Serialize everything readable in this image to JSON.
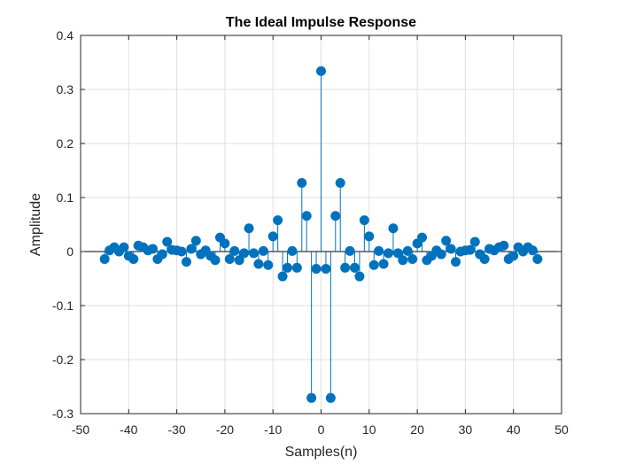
{
  "chart_data": {
    "type": "stem",
    "title": "The Ideal Impulse Response",
    "xlabel": "Samples(n)",
    "ylabel": "Amplitude",
    "xlim": [
      -50,
      50
    ],
    "ylim": [
      -0.3,
      0.4
    ],
    "xticks": [
      -50,
      -40,
      -30,
      -20,
      -10,
      0,
      10,
      20,
      30,
      40,
      50
    ],
    "yticks": [
      -0.3,
      -0.2,
      -0.1,
      0,
      0.1,
      0.2,
      0.3,
      0.4
    ],
    "ytick_labels": [
      "-0.3",
      "-0.2",
      "-0.1",
      "0",
      "0.1",
      "0.2",
      "0.3",
      "0.4"
    ],
    "grid": true,
    "baseline": 0,
    "color": "#0072BD",
    "x": [
      -45,
      -44,
      -43,
      -42,
      -41,
      -40,
      -39,
      -38,
      -37,
      -36,
      -35,
      -34,
      -33,
      -32,
      -31,
      -30,
      -29,
      -28,
      -27,
      -26,
      -25,
      -24,
      -23,
      -22,
      -21,
      -20,
      -19,
      -18,
      -17,
      -16,
      -15,
      -14,
      -13,
      -12,
      -11,
      -10,
      -9,
      -8,
      -7,
      -6,
      -5,
      -4,
      -3,
      -2,
      -1,
      0,
      1,
      2,
      3,
      4,
      5,
      6,
      7,
      8,
      9,
      10,
      11,
      12,
      13,
      14,
      15,
      16,
      17,
      18,
      19,
      20,
      21,
      22,
      23,
      24,
      25,
      26,
      27,
      28,
      29,
      30,
      31,
      32,
      33,
      34,
      35,
      36,
      37,
      38,
      39,
      40,
      41,
      42,
      43,
      44,
      45
    ],
    "y": [
      -0.014,
      0.002,
      0.008,
      0.0,
      0.008,
      -0.008,
      -0.014,
      0.011,
      0.008,
      0.002,
      0.005,
      -0.014,
      -0.005,
      0.018,
      0.003,
      0.002,
      0.0,
      -0.019,
      0.005,
      0.02,
      -0.005,
      0.002,
      -0.008,
      -0.016,
      0.026,
      0.015,
      -0.014,
      0.001,
      -0.016,
      -0.003,
      0.043,
      -0.003,
      -0.023,
      0.001,
      -0.025,
      0.028,
      0.058,
      -0.046,
      -0.03,
      0.001,
      -0.03,
      0.127,
      0.066,
      -0.271,
      -0.032,
      0.334,
      -0.032,
      -0.271,
      0.066,
      0.127,
      -0.03,
      0.001,
      -0.03,
      -0.046,
      0.058,
      0.028,
      -0.025,
      0.001,
      -0.023,
      -0.003,
      0.043,
      -0.003,
      -0.016,
      0.001,
      -0.014,
      0.015,
      0.026,
      -0.016,
      -0.008,
      0.002,
      -0.005,
      0.02,
      0.005,
      -0.019,
      0.0,
      0.002,
      0.003,
      0.018,
      -0.005,
      -0.014,
      0.005,
      0.002,
      0.008,
      0.011,
      -0.014,
      -0.008,
      0.008,
      0.0,
      0.008,
      0.002,
      -0.014
    ]
  }
}
